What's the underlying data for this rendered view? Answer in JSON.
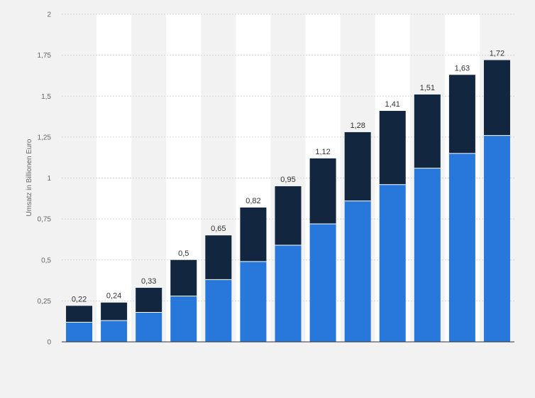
{
  "chart_data": {
    "type": "bar",
    "stacked": true,
    "ylabel": "Umsatz in Billionen Euro",
    "ylim": [
      0,
      2
    ],
    "yticks": [
      {
        "value": 0,
        "label": "0"
      },
      {
        "value": 0.25,
        "label": "0,25"
      },
      {
        "value": 0.5,
        "label": "0,5"
      },
      {
        "value": 0.75,
        "label": "0,75"
      },
      {
        "value": 1,
        "label": "1"
      },
      {
        "value": 1.25,
        "label": "1,25"
      },
      {
        "value": 1.5,
        "label": "1,5"
      },
      {
        "value": 1.75,
        "label": "1,75"
      },
      {
        "value": 2,
        "label": "2"
      }
    ],
    "grid": true,
    "series": [
      {
        "color": "#2878dc",
        "values": [
          0.12,
          0.13,
          0.18,
          0.28,
          0.38,
          0.49,
          0.59,
          0.72,
          0.86,
          0.96,
          1.06,
          1.15,
          1.26
        ]
      },
      {
        "color": "#12263f",
        "values": [
          0.1,
          0.11,
          0.15,
          0.22,
          0.27,
          0.33,
          0.36,
          0.4,
          0.42,
          0.45,
          0.45,
          0.48,
          0.46
        ]
      }
    ],
    "totals": [
      0.22,
      0.24,
      0.33,
      0.5,
      0.65,
      0.82,
      0.95,
      1.12,
      1.28,
      1.41,
      1.51,
      1.63,
      1.72
    ],
    "total_labels": [
      "0,22",
      "0,24",
      "0,33",
      "0,5",
      "0,65",
      "0,82",
      "0,95",
      "1,12",
      "1,28",
      "1,41",
      "1,51",
      "1,63",
      "1,72"
    ]
  }
}
